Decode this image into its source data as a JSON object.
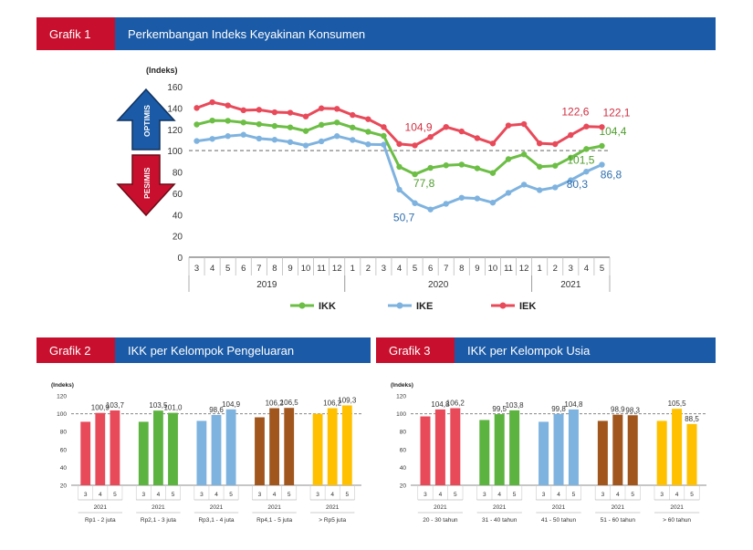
{
  "header1": {
    "tag": "Grafik 1",
    "title": "Perkembangan Indeks Keyakinan Konsumen"
  },
  "header2": {
    "tag": "Grafik 2",
    "title": "IKK per Kelompok Pengeluaran"
  },
  "header3": {
    "tag": "Grafik 3",
    "title": "IKK per Kelompok Usia"
  },
  "main": {
    "arrow_up_label": "OPTIMIS",
    "arrow_down_label": "PESIMIS",
    "colors": {
      "up_arrow": "#1a5aa6",
      "down_arrow": "#c8102e"
    }
  },
  "chart_data": [
    {
      "type": "line",
      "ylabel": "(Indeks)",
      "ylim": [
        0,
        160
      ],
      "yticks": [
        0,
        20,
        40,
        60,
        80,
        100,
        120,
        140,
        160
      ],
      "reference_line": 100,
      "x": [
        "3",
        "4",
        "5",
        "6",
        "7",
        "8",
        "9",
        "10",
        "11",
        "12",
        "1",
        "2",
        "3",
        "4",
        "5",
        "6",
        "7",
        "8",
        "9",
        "10",
        "11",
        "12",
        "1",
        "2",
        "3",
        "4",
        "5"
      ],
      "years": [
        {
          "label": "2019",
          "start": 0,
          "end": 9
        },
        {
          "label": "2020",
          "start": 10,
          "end": 21
        },
        {
          "label": "2021",
          "start": 22,
          "end": 26
        }
      ],
      "legend_position": "bottom",
      "series": [
        {
          "name": "IKK",
          "color": "#6cbe45",
          "values": [
            124.5,
            128.2,
            128.0,
            126.4,
            124.8,
            123.1,
            121.8,
            118.4,
            124.2,
            126.4,
            121.7,
            117.7,
            113.8,
            84.8,
            77.8,
            83.8,
            86.2,
            86.9,
            83.4,
            79.0,
            92.0,
            96.5,
            84.9,
            85.8,
            93.4,
            101.5,
            104.4
          ],
          "labels": [
            {
              "index": 14,
              "text": "77,8"
            },
            {
              "index": 25,
              "text": "101,5"
            },
            {
              "index": 26,
              "text": "104,4"
            }
          ]
        },
        {
          "name": "IKE",
          "color": "#7fb3df",
          "values": [
            109.0,
            111.0,
            113.6,
            114.9,
            111.3,
            110.2,
            108.0,
            104.8,
            108.7,
            113.6,
            110.0,
            105.9,
            105.6,
            63.4,
            50.7,
            44.8,
            50.1,
            55.8,
            55.1,
            51.2,
            60.4,
            68.1,
            62.9,
            65.5,
            72.2,
            80.3,
            86.8
          ],
          "labels": [
            {
              "index": 14,
              "text": "50,7"
            },
            {
              "index": 25,
              "text": "80,3"
            },
            {
              "index": 26,
              "text": "86,8"
            }
          ]
        },
        {
          "name": "IEK",
          "color": "#e84a5a",
          "values": [
            140.0,
            145.4,
            142.4,
            137.9,
            138.3,
            136.0,
            135.6,
            132.0,
            139.7,
            139.2,
            133.4,
            129.5,
            122.1,
            106.2,
            104.9,
            112.8,
            122.2,
            118.0,
            111.7,
            106.7,
            123.6,
            124.9,
            106.8,
            106.1,
            114.6,
            122.6,
            122.1
          ],
          "labels": [
            {
              "index": 14,
              "text": "104,9"
            },
            {
              "index": 25,
              "text": "122,6"
            },
            {
              "index": 26,
              "text": "122,1"
            }
          ]
        }
      ]
    },
    {
      "type": "bar",
      "ylabel": "(Indeks)",
      "ylim": [
        20,
        120
      ],
      "yticks": [
        20,
        40,
        60,
        80,
        100,
        120
      ],
      "reference_line": 100,
      "groups": [
        {
          "name": "Rp1 - 2 juta",
          "year": "2021",
          "color": "#e84a5a",
          "months": [
            "3",
            "4",
            "5"
          ],
          "values": [
            91.0,
            100.9,
            103.7
          ],
          "labels": [
            "",
            "100,9",
            "103,7"
          ]
        },
        {
          "name": "Rp2,1 - 3 juta",
          "year": "2021",
          "color": "#5cb33f",
          "months": [
            "3",
            "4",
            "5"
          ],
          "values": [
            91.0,
            103.5,
            101.0
          ],
          "labels": [
            "",
            "103,5",
            "101,0"
          ]
        },
        {
          "name": "Rp3,1 - 4 juta",
          "year": "2021",
          "color": "#7fb3df",
          "months": [
            "3",
            "4",
            "5"
          ],
          "values": [
            92.0,
            98.6,
            104.9
          ],
          "labels": [
            "",
            "98,6",
            "104,9"
          ]
        },
        {
          "name": "Rp4,1 - 5 juta",
          "year": "2021",
          "color": "#a0561c",
          "months": [
            "3",
            "4",
            "5"
          ],
          "values": [
            96.0,
            106.2,
            106.5
          ],
          "labels": [
            "",
            "106,2",
            "106,5"
          ]
        },
        {
          "name": "> Rp5 juta",
          "year": "2021",
          "color": "#ffc000",
          "months": [
            "3",
            "4",
            "5"
          ],
          "values": [
            100.0,
            106.2,
            109.3
          ],
          "labels": [
            "",
            "106,2",
            "109,3"
          ]
        }
      ]
    },
    {
      "type": "bar",
      "ylabel": "(Indeks)",
      "ylim": [
        20,
        120
      ],
      "yticks": [
        20,
        40,
        60,
        80,
        100,
        120
      ],
      "reference_line": 100,
      "groups": [
        {
          "name": "20 - 30 tahun",
          "year": "2021",
          "color": "#e84a5a",
          "months": [
            "3",
            "4",
            "5"
          ],
          "values": [
            97.0,
            104.8,
            106.2
          ],
          "labels": [
            "",
            "104,8",
            "106,2"
          ]
        },
        {
          "name": "31 - 40 tahun",
          "year": "2021",
          "color": "#5cb33f",
          "months": [
            "3",
            "4",
            "5"
          ],
          "values": [
            93.0,
            99.5,
            103.8
          ],
          "labels": [
            "",
            "99,5",
            "103,8"
          ]
        },
        {
          "name": "41 - 50 tahun",
          "year": "2021",
          "color": "#7fb3df",
          "months": [
            "3",
            "4",
            "5"
          ],
          "values": [
            91.0,
            99.8,
            104.8
          ],
          "labels": [
            "",
            "99,8",
            "104,8"
          ]
        },
        {
          "name": "51 - 60 tahun",
          "year": "2021",
          "color": "#a0561c",
          "months": [
            "3",
            "4",
            "5"
          ],
          "values": [
            92.0,
            98.9,
            98.3
          ],
          "labels": [
            "",
            "98,9",
            "98,3"
          ]
        },
        {
          "name": "> 60 tahun",
          "year": "2021",
          "color": "#ffc000",
          "months": [
            "3",
            "4",
            "5"
          ],
          "values": [
            92.0,
            105.5,
            88.5
          ],
          "labels": [
            "",
            "105,5",
            "88,5"
          ]
        }
      ]
    }
  ]
}
